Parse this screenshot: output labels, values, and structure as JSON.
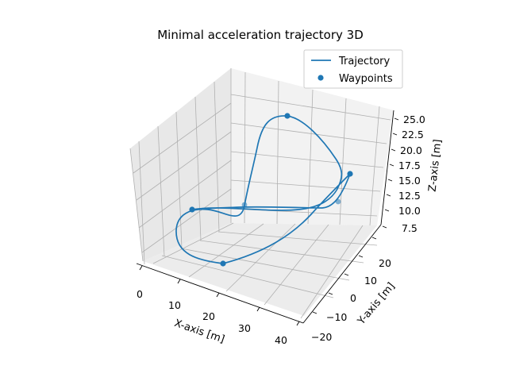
{
  "chart_data": {
    "type": "line3d",
    "title": "Minimal acceleration trajectory 3D",
    "xlabel": "X-axis [m]",
    "ylabel": "Y-axis [m]",
    "zlabel": "Z-axis [m]",
    "xticks": [
      "0",
      "10",
      "20",
      "30",
      "40"
    ],
    "yticks": [
      "−20",
      "−10",
      "0",
      "10",
      "20"
    ],
    "zticks": [
      "7.5",
      "10.0",
      "12.5",
      "15.0",
      "17.5",
      "20.0",
      "22.5",
      "25.0"
    ],
    "xlim": [
      -2,
      42
    ],
    "ylim": [
      -25,
      27
    ],
    "zlim": [
      6,
      26.5
    ],
    "legend": {
      "position": "top-right",
      "entries": [
        {
          "label": "Trajectory",
          "kind": "line"
        },
        {
          "label": "Waypoints",
          "kind": "marker"
        }
      ]
    },
    "color": "#1f77b4",
    "grid": true
  }
}
